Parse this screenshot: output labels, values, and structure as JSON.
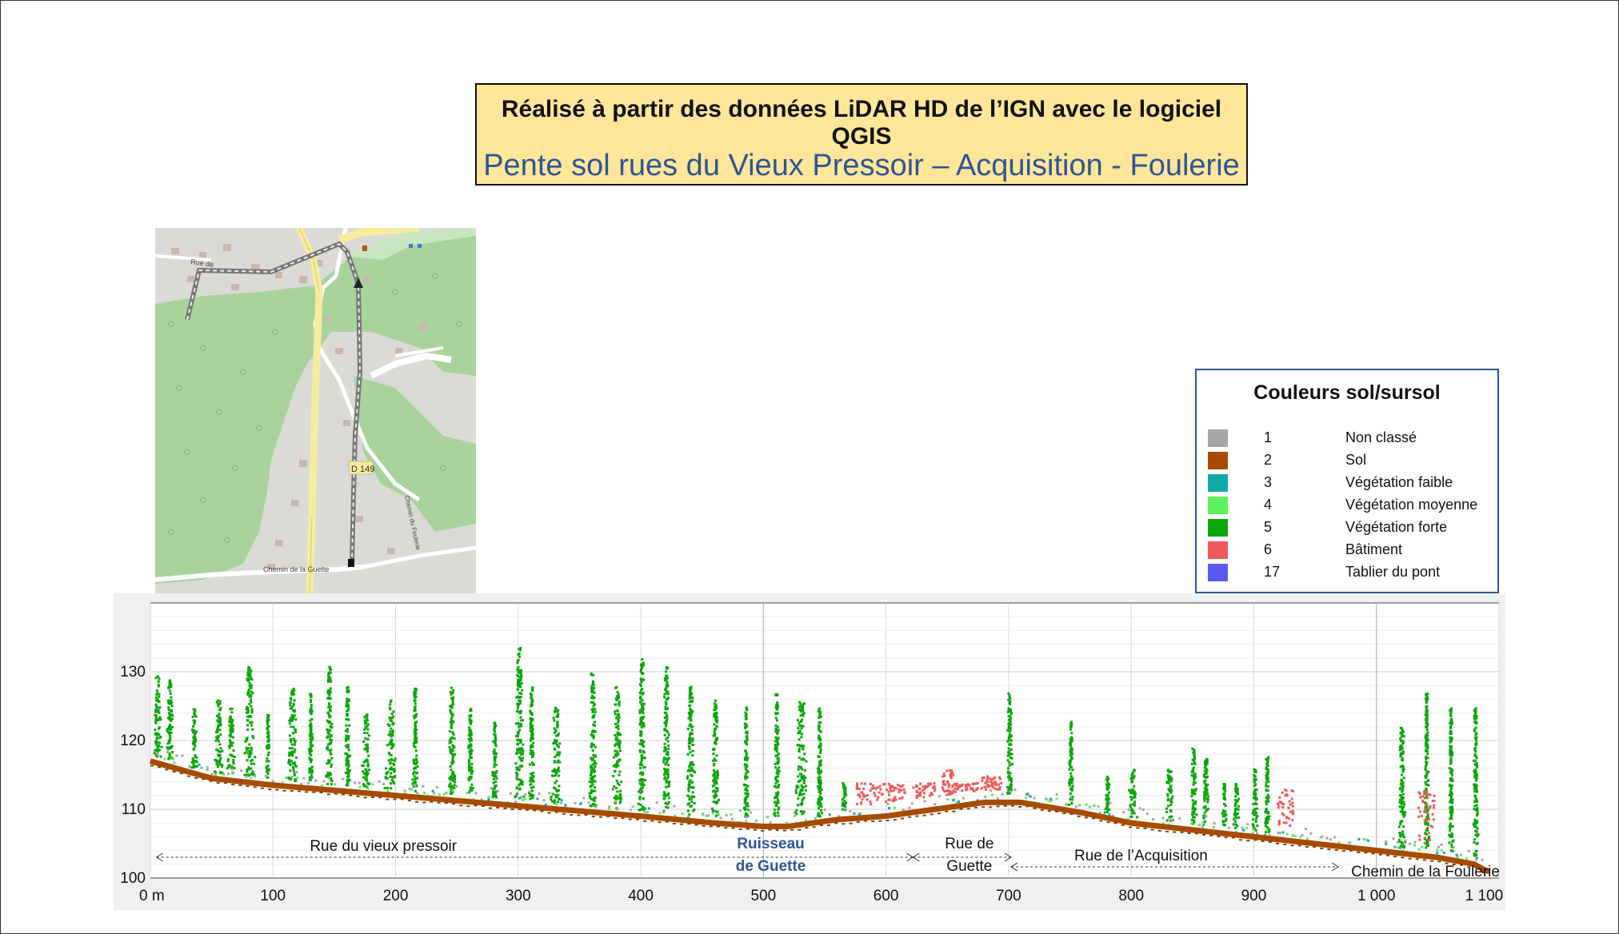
{
  "header": {
    "line1": "Réalisé à partir des données LiDAR HD de l’IGN avec le logiciel QGIS",
    "line2": "Pente sol rues du Vieux Pressoir – Acquisition - Foulerie"
  },
  "map": {
    "labels": {
      "rue_de": "Rue de",
      "road_number": "D 149",
      "chemin_guette": "Chemin de la Guette",
      "chemin_foulerie": "Chemin du Foulerie"
    }
  },
  "legend": {
    "title": "Couleurs sol/sursol",
    "items": [
      {
        "code": "1",
        "label": "Non classé",
        "color": "#a6a6a6"
      },
      {
        "code": "2",
        "label": "Sol",
        "color": "#a64b00"
      },
      {
        "code": "3",
        "label": "Végétation faible",
        "color": "#10a8a8"
      },
      {
        "code": "4",
        "label": "Végétation moyenne",
        "color": "#5cf05c"
      },
      {
        "code": "5",
        "label": "Végétation forte",
        "color": "#0aa60a"
      },
      {
        "code": "6",
        "label": "Bâtiment",
        "color": "#f05a5a"
      },
      {
        "code": "17",
        "label": "Tablier du pont",
        "color": "#5a5af0"
      }
    ]
  },
  "chart_data": {
    "type": "scatter",
    "title": "",
    "xlabel": "",
    "ylabel": "",
    "xlim": [
      0,
      1100
    ],
    "ylim": [
      100,
      140
    ],
    "x_ticks": [
      0,
      100,
      200,
      300,
      400,
      500,
      600,
      700,
      800,
      900,
      1000,
      1100
    ],
    "x_tick_labels": [
      "0 m",
      "100",
      "200",
      "300",
      "400",
      "500",
      "600",
      "700",
      "800",
      "900",
      "1 000",
      "1 100 m"
    ],
    "y_ticks": [
      100,
      110,
      120,
      130
    ],
    "y_tick_labels": [
      "100",
      "110",
      "120",
      "130"
    ],
    "grid": true,
    "series": [
      {
        "name": "Sol",
        "color": "#a64b00",
        "points": [
          [
            0,
            117
          ],
          [
            50,
            114.5
          ],
          [
            100,
            113.5
          ],
          [
            200,
            112
          ],
          [
            300,
            110.5
          ],
          [
            400,
            109
          ],
          [
            460,
            108
          ],
          [
            500,
            107.5
          ],
          [
            520,
            107.5
          ],
          [
            560,
            108.5
          ],
          [
            600,
            109
          ],
          [
            640,
            110
          ],
          [
            680,
            111
          ],
          [
            710,
            111
          ],
          [
            760,
            109.5
          ],
          [
            800,
            108
          ],
          [
            850,
            107
          ],
          [
            900,
            106
          ],
          [
            950,
            105
          ],
          [
            1000,
            104
          ],
          [
            1050,
            103
          ],
          [
            1080,
            102
          ],
          [
            1090,
            101
          ]
        ]
      },
      {
        "name": "Végétation forte",
        "color": "#0aa60a",
        "points": [
          [
            5,
            130
          ],
          [
            15,
            129
          ],
          [
            35,
            125
          ],
          [
            55,
            126
          ],
          [
            65,
            125
          ],
          [
            80,
            131
          ],
          [
            95,
            124
          ],
          [
            115,
            128
          ],
          [
            130,
            127
          ],
          [
            145,
            131
          ],
          [
            160,
            128
          ],
          [
            175,
            124
          ],
          [
            195,
            126
          ],
          [
            215,
            128
          ],
          [
            245,
            128
          ],
          [
            260,
            125
          ],
          [
            280,
            123
          ],
          [
            300,
            134
          ],
          [
            310,
            128
          ],
          [
            330,
            125
          ],
          [
            360,
            130
          ],
          [
            380,
            128
          ],
          [
            400,
            132
          ],
          [
            420,
            131
          ],
          [
            440,
            128
          ],
          [
            460,
            126
          ],
          [
            485,
            125
          ],
          [
            510,
            127
          ],
          [
            530,
            126
          ],
          [
            545,
            125
          ],
          [
            565,
            114
          ],
          [
            700,
            127
          ],
          [
            750,
            123
          ],
          [
            780,
            115
          ],
          [
            800,
            116
          ],
          [
            830,
            116
          ],
          [
            850,
            119
          ],
          [
            860,
            118
          ],
          [
            875,
            114
          ],
          [
            885,
            114
          ],
          [
            900,
            116
          ],
          [
            910,
            118
          ],
          [
            1020,
            122
          ],
          [
            1040,
            127
          ],
          [
            1060,
            125
          ],
          [
            1080,
            125
          ]
        ]
      },
      {
        "name": "Bâtiment",
        "color": "#f05a5a",
        "points": [
          [
            585,
            114
          ],
          [
            605,
            114
          ],
          [
            630,
            114
          ],
          [
            650,
            116
          ],
          [
            665,
            114
          ],
          [
            685,
            115
          ],
          [
            925,
            113
          ],
          [
            1040,
            113
          ]
        ]
      }
    ],
    "annotations": [
      {
        "text": "Rue du vieux pressoir",
        "x_from": 5,
        "x_to": 622
      },
      {
        "text": "Ruisseau",
        "x": 506
      },
      {
        "text": "de Guette",
        "x": 506
      },
      {
        "text": "Rue de",
        "x": 668
      },
      {
        "text": "Guette",
        "x": 668
      },
      {
        "text": "Rue de l’Acquisition",
        "x_from": 702,
        "x_to": 969
      },
      {
        "text": "Chemin de la Foulerie",
        "x": 1040
      }
    ]
  }
}
